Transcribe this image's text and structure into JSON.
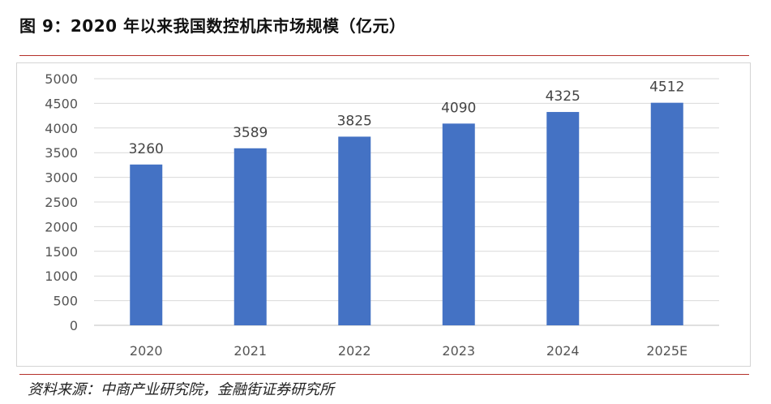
{
  "figure": {
    "title": "图 9：2020 年以来我国数控机床市场规模（亿元）",
    "source": "资料来源：中商产业研究院，金融街证券研究所"
  },
  "colors": {
    "bar": "#4472c4",
    "rule": "#b5302a",
    "grid": "#d9d9d9",
    "text": "#555555"
  },
  "chart_data": {
    "type": "bar",
    "title": "",
    "xlabel": "",
    "ylabel": "",
    "categories": [
      "2020",
      "2021",
      "2022",
      "2023",
      "2024",
      "2025E"
    ],
    "values": [
      3260,
      3589,
      3825,
      4090,
      4325,
      4512
    ],
    "data_labels": [
      "3260",
      "3589",
      "3825",
      "4090",
      "4325",
      "4512"
    ],
    "ylim": [
      0,
      5000
    ],
    "yticks": [
      0,
      500,
      1000,
      1500,
      2000,
      2500,
      3000,
      3500,
      4000,
      4500,
      5000
    ],
    "grid": true,
    "legend": "none"
  }
}
